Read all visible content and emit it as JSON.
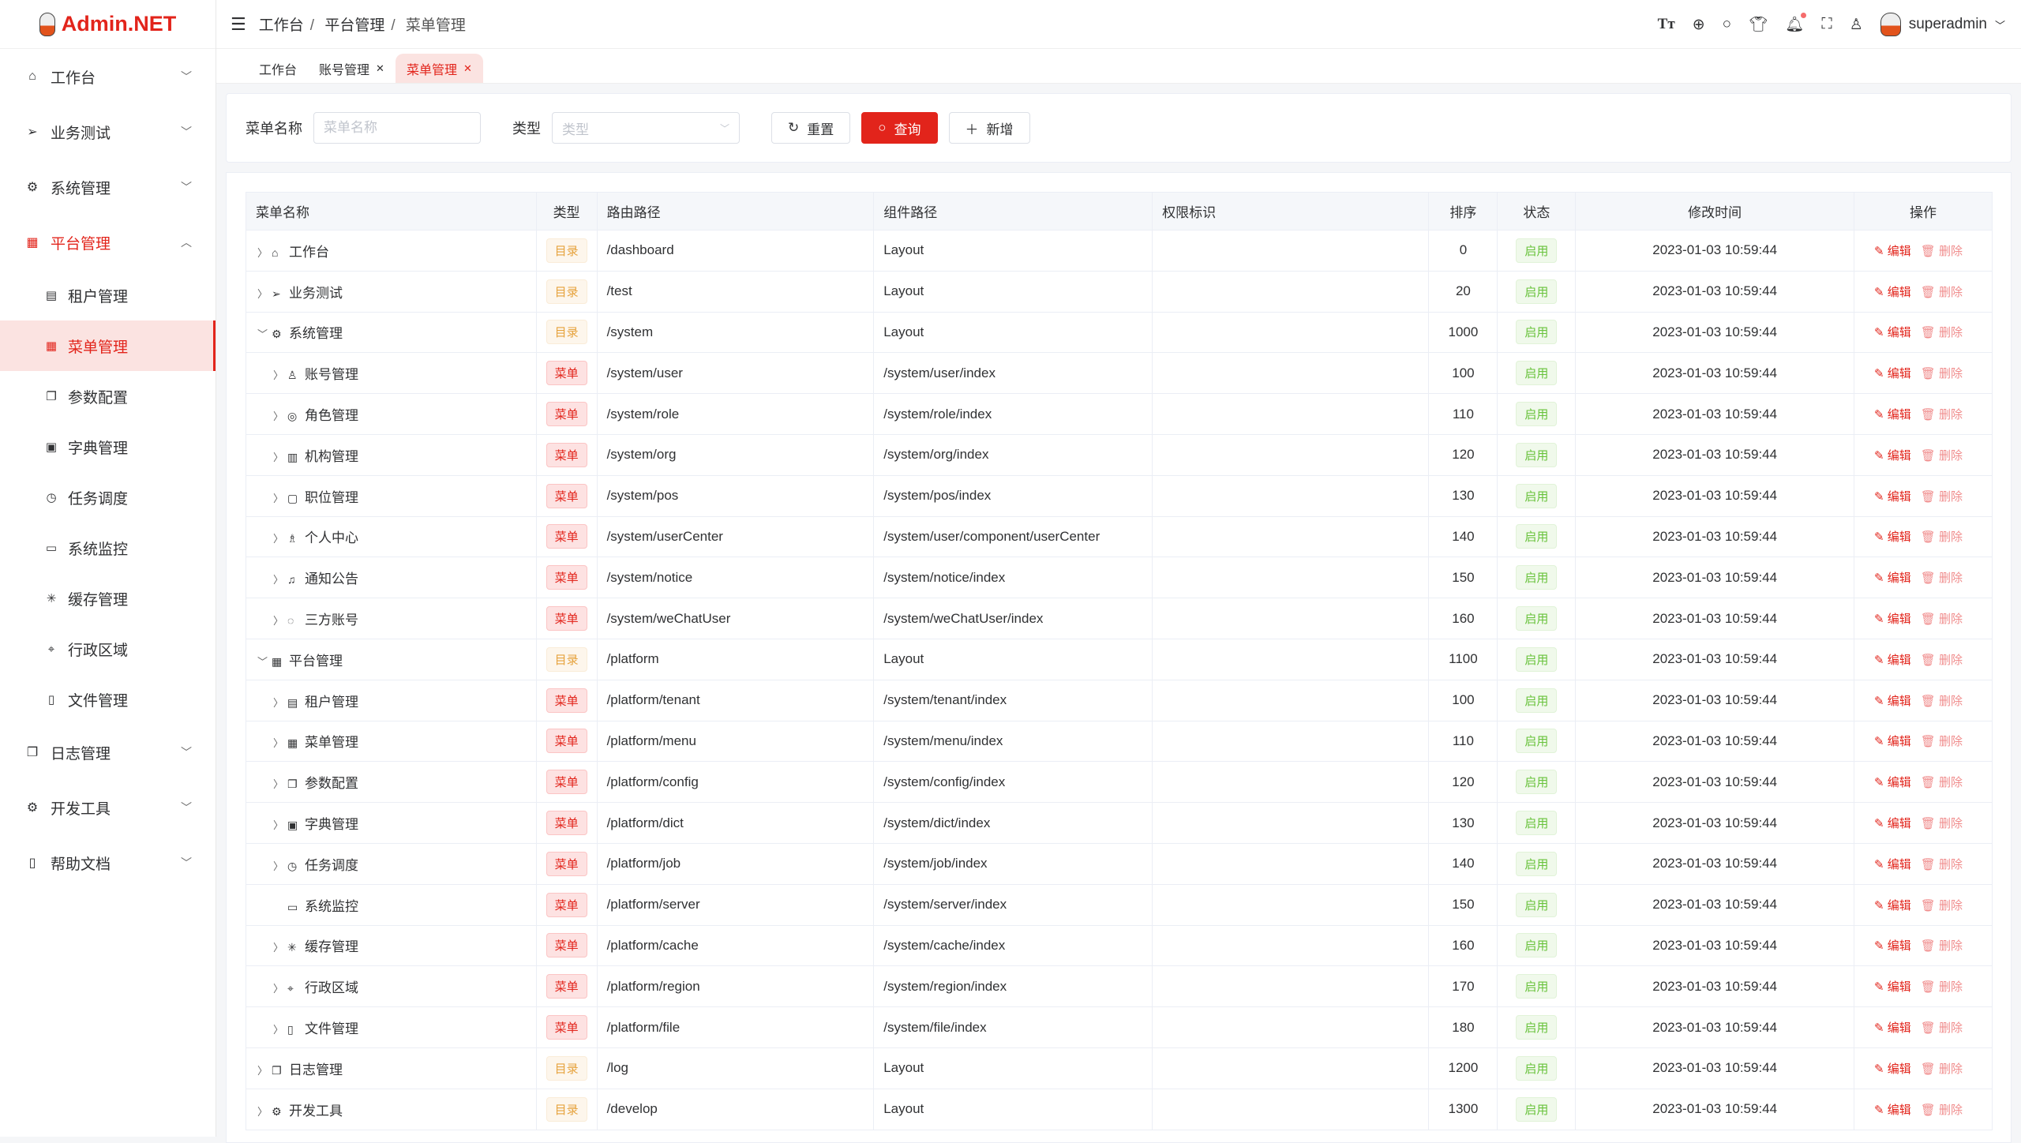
{
  "brand": {
    "name": "Admin.NET",
    "accent": "#e2241b"
  },
  "sidebar": {
    "items": [
      {
        "label": "工作台",
        "icon": "home-icon",
        "glyph": "⌂",
        "open": false
      },
      {
        "label": "业务测试",
        "icon": "send-icon",
        "glyph": "➢",
        "open": false
      },
      {
        "label": "系统管理",
        "icon": "gear-icon",
        "glyph": "⚙",
        "open": false
      },
      {
        "label": "平台管理",
        "icon": "grid-icon",
        "glyph": "▦",
        "open": true,
        "children": [
          {
            "label": "租户管理",
            "glyph": "▤"
          },
          {
            "label": "菜单管理",
            "glyph": "▦",
            "active": true
          },
          {
            "label": "参数配置",
            "glyph": "❐"
          },
          {
            "label": "字典管理",
            "glyph": "▣"
          },
          {
            "label": "任务调度",
            "glyph": "◷"
          },
          {
            "label": "系统监控",
            "glyph": "▭"
          },
          {
            "label": "缓存管理",
            "glyph": "✳"
          },
          {
            "label": "行政区域",
            "glyph": "⌖"
          },
          {
            "label": "文件管理",
            "glyph": "▯"
          }
        ]
      },
      {
        "label": "日志管理",
        "icon": "copy-icon",
        "glyph": "❐",
        "open": false
      },
      {
        "label": "开发工具",
        "icon": "tool-icon",
        "glyph": "⚙",
        "open": false
      },
      {
        "label": "帮助文档",
        "icon": "book-icon",
        "glyph": "▯",
        "open": false
      }
    ]
  },
  "header": {
    "breadcrumb": [
      "工作台",
      "平台管理",
      "菜单管理"
    ],
    "user": "superadmin"
  },
  "tabs": [
    {
      "label": "工作台",
      "closable": false
    },
    {
      "label": "账号管理",
      "closable": true
    },
    {
      "label": "菜单管理",
      "closable": true,
      "active": true
    }
  ],
  "search": {
    "name_label": "菜单名称",
    "name_placeholder": "菜单名称",
    "name_value": "",
    "type_label": "类型",
    "type_placeholder": "类型",
    "reset": "重置",
    "query": "查询",
    "add": "新增"
  },
  "table": {
    "columns": [
      "菜单名称",
      "类型",
      "路由路径",
      "组件路径",
      "权限标识",
      "排序",
      "状态",
      "修改时间",
      "操作"
    ],
    "edit": "编辑",
    "delete": "删除",
    "rows": [
      {
        "level": 0,
        "expand": "collapsed",
        "glyph": "⌂",
        "name": "工作台",
        "type": "目录",
        "path": "/dashboard",
        "component": "Layout",
        "perm": "",
        "sort": "0",
        "status": "启用",
        "time": "2023-01-03 10:59:44"
      },
      {
        "level": 0,
        "expand": "collapsed",
        "glyph": "➢",
        "name": "业务测试",
        "type": "目录",
        "path": "/test",
        "component": "Layout",
        "perm": "",
        "sort": "20",
        "status": "启用",
        "time": "2023-01-03 10:59:44"
      },
      {
        "level": 0,
        "expand": "expanded",
        "glyph": "⚙",
        "name": "系统管理",
        "type": "目录",
        "path": "/system",
        "component": "Layout",
        "perm": "",
        "sort": "1000",
        "status": "启用",
        "time": "2023-01-03 10:59:44"
      },
      {
        "level": 1,
        "expand": "collapsed",
        "glyph": "♙",
        "name": "账号管理",
        "type": "菜单",
        "path": "/system/user",
        "component": "/system/user/index",
        "perm": "",
        "sort": "100",
        "status": "启用",
        "time": "2023-01-03 10:59:44"
      },
      {
        "level": 1,
        "expand": "collapsed",
        "glyph": "◎",
        "name": "角色管理",
        "type": "菜单",
        "path": "/system/role",
        "component": "/system/role/index",
        "perm": "",
        "sort": "110",
        "status": "启用",
        "time": "2023-01-03 10:59:44"
      },
      {
        "level": 1,
        "expand": "collapsed",
        "glyph": "▥",
        "name": "机构管理",
        "type": "菜单",
        "path": "/system/org",
        "component": "/system/org/index",
        "perm": "",
        "sort": "120",
        "status": "启用",
        "time": "2023-01-03 10:59:44"
      },
      {
        "level": 1,
        "expand": "collapsed",
        "glyph": "▢",
        "name": "职位管理",
        "type": "菜单",
        "path": "/system/pos",
        "component": "/system/pos/index",
        "perm": "",
        "sort": "130",
        "status": "启用",
        "time": "2023-01-03 10:59:44"
      },
      {
        "level": 1,
        "expand": "collapsed",
        "glyph": "♗",
        "name": "个人中心",
        "type": "菜单",
        "path": "/system/userCenter",
        "component": "/system/user/component/userCenter",
        "perm": "",
        "sort": "140",
        "status": "启用",
        "time": "2023-01-03 10:59:44"
      },
      {
        "level": 1,
        "expand": "collapsed",
        "glyph": "♫",
        "name": "通知公告",
        "type": "菜单",
        "path": "/system/notice",
        "component": "/system/notice/index",
        "perm": "",
        "sort": "150",
        "status": "启用",
        "time": "2023-01-03 10:59:44"
      },
      {
        "level": 1,
        "expand": "collapsed",
        "glyph": "◌",
        "name": "三方账号",
        "type": "菜单",
        "path": "/system/weChatUser",
        "component": "/system/weChatUser/index",
        "perm": "",
        "sort": "160",
        "status": "启用",
        "time": "2023-01-03 10:59:44"
      },
      {
        "level": 0,
        "expand": "expanded",
        "glyph": "▦",
        "name": "平台管理",
        "type": "目录",
        "path": "/platform",
        "component": "Layout",
        "perm": "",
        "sort": "1100",
        "status": "启用",
        "time": "2023-01-03 10:59:44"
      },
      {
        "level": 1,
        "expand": "collapsed",
        "glyph": "▤",
        "name": "租户管理",
        "type": "菜单",
        "path": "/platform/tenant",
        "component": "/system/tenant/index",
        "perm": "",
        "sort": "100",
        "status": "启用",
        "time": "2023-01-03 10:59:44"
      },
      {
        "level": 1,
        "expand": "collapsed",
        "glyph": "▦",
        "name": "菜单管理",
        "type": "菜单",
        "path": "/platform/menu",
        "component": "/system/menu/index",
        "perm": "",
        "sort": "110",
        "status": "启用",
        "time": "2023-01-03 10:59:44"
      },
      {
        "level": 1,
        "expand": "collapsed",
        "glyph": "❐",
        "name": "参数配置",
        "type": "菜单",
        "path": "/platform/config",
        "component": "/system/config/index",
        "perm": "",
        "sort": "120",
        "status": "启用",
        "time": "2023-01-03 10:59:44"
      },
      {
        "level": 1,
        "expand": "collapsed",
        "glyph": "▣",
        "name": "字典管理",
        "type": "菜单",
        "path": "/platform/dict",
        "component": "/system/dict/index",
        "perm": "",
        "sort": "130",
        "status": "启用",
        "time": "2023-01-03 10:59:44"
      },
      {
        "level": 1,
        "expand": "collapsed",
        "glyph": "◷",
        "name": "任务调度",
        "type": "菜单",
        "path": "/platform/job",
        "component": "/system/job/index",
        "perm": "",
        "sort": "140",
        "status": "启用",
        "time": "2023-01-03 10:59:44"
      },
      {
        "level": 1,
        "expand": "none",
        "glyph": "▭",
        "name": "系统监控",
        "type": "菜单",
        "path": "/platform/server",
        "component": "/system/server/index",
        "perm": "",
        "sort": "150",
        "status": "启用",
        "time": "2023-01-03 10:59:44"
      },
      {
        "level": 1,
        "expand": "collapsed",
        "glyph": "✳",
        "name": "缓存管理",
        "type": "菜单",
        "path": "/platform/cache",
        "component": "/system/cache/index",
        "perm": "",
        "sort": "160",
        "status": "启用",
        "time": "2023-01-03 10:59:44"
      },
      {
        "level": 1,
        "expand": "collapsed",
        "glyph": "⌖",
        "name": "行政区域",
        "type": "菜单",
        "path": "/platform/region",
        "component": "/system/region/index",
        "perm": "",
        "sort": "170",
        "status": "启用",
        "time": "2023-01-03 10:59:44"
      },
      {
        "level": 1,
        "expand": "collapsed",
        "glyph": "▯",
        "name": "文件管理",
        "type": "菜单",
        "path": "/platform/file",
        "component": "/system/file/index",
        "perm": "",
        "sort": "180",
        "status": "启用",
        "time": "2023-01-03 10:59:44"
      },
      {
        "level": 0,
        "expand": "collapsed",
        "glyph": "❐",
        "name": "日志管理",
        "type": "目录",
        "path": "/log",
        "component": "Layout",
        "perm": "",
        "sort": "1200",
        "status": "启用",
        "time": "2023-01-03 10:59:44"
      },
      {
        "level": 0,
        "expand": "collapsed",
        "glyph": "⚙",
        "name": "开发工具",
        "type": "目录",
        "path": "/develop",
        "component": "Layout",
        "perm": "",
        "sort": "1300",
        "status": "启用",
        "time": "2023-01-03 10:59:44"
      }
    ]
  }
}
